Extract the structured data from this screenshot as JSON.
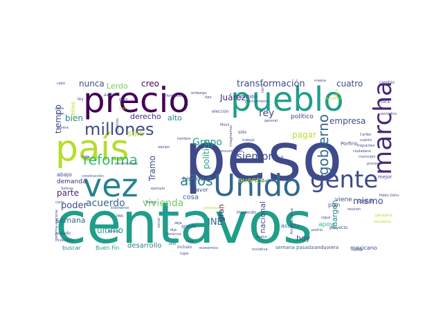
{
  "colors": {
    "background": "#ffffff",
    "palette": [
      "#440154",
      "#482878",
      "#3e4a89",
      "#31688e",
      "#26828e",
      "#1f9e89",
      "#35b779",
      "#6ece58",
      "#b5de2b",
      "#fde725"
    ]
  },
  "words": [
    {
      "text": "peso",
      "size": 96,
      "color": "#3e4a89",
      "vertical": false
    },
    {
      "text": "centavos",
      "size": 82,
      "color": "#1f9e89",
      "vertical": false
    },
    {
      "text": "precio",
      "size": 50,
      "color": "#440154",
      "vertical": false
    },
    {
      "text": "pueblo",
      "size": 48,
      "color": "#1f9e89",
      "vertical": false
    },
    {
      "text": "país",
      "size": 52,
      "color": "#b5de2b",
      "vertical": false
    },
    {
      "text": "vez",
      "size": 46,
      "color": "#26828e",
      "vertical": false
    },
    {
      "text": "Unido",
      "size": 44,
      "color": "#31688e",
      "vertical": false
    },
    {
      "text": "gente",
      "size": 34,
      "color": "#3e4a89",
      "vertical": false
    },
    {
      "text": "marcha",
      "size": 36,
      "color": "#482878",
      "vertical": true
    },
    {
      "text": "millones",
      "size": 24,
      "color": "#3e4a89",
      "vertical": false
    },
    {
      "text": "reforma",
      "size": 20,
      "color": "#35b779",
      "vertical": false
    },
    {
      "text": "gobierno",
      "size": 20,
      "color": "#31688e",
      "vertical": true
    },
    {
      "text": "años",
      "size": 20,
      "color": "#26828e",
      "vertical": false
    },
    {
      "text": "siempre",
      "size": 15,
      "color": "#3e4a89",
      "vertical": false
    },
    {
      "text": "acuerdo",
      "size": 14,
      "color": "#31688e",
      "vertical": false
    },
    {
      "text": "vivienda",
      "size": 14,
      "color": "#6ece58",
      "vertical": false
    },
    {
      "text": "transformación",
      "size": 13,
      "color": "#3e4a89",
      "vertical": false
    },
    {
      "text": "mismo",
      "size": 13,
      "color": "#3e4a89",
      "vertical": false
    },
    {
      "text": "Grupo",
      "size": 14,
      "color": "#1f9e89",
      "vertical": false
    },
    {
      "text": "rey",
      "size": 14,
      "color": "#3e4a89",
      "vertical": false
    },
    {
      "text": "creo",
      "size": 12,
      "color": "#440154",
      "vertical": false
    },
    {
      "text": "nunca",
      "size": 12,
      "color": "#3e4a89",
      "vertical": false
    },
    {
      "text": "Lerdo",
      "size": 11,
      "color": "#6ece58",
      "vertical": false
    },
    {
      "text": "Juárez",
      "size": 12,
      "color": "#482878",
      "vertical": false
    },
    {
      "text": "cuatro",
      "size": 12,
      "color": "#3e4a89",
      "vertical": false
    },
    {
      "text": "derecho",
      "size": 11,
      "color": "#482878",
      "vertical": false
    },
    {
      "text": "alto",
      "size": 11,
      "color": "#26828e",
      "vertical": false
    },
    {
      "text": "bien",
      "size": 12,
      "color": "#26828e",
      "vertical": false
    },
    {
      "text": "sólo",
      "size": 12,
      "color": "#b5de2b",
      "vertical": false
    },
    {
      "text": "empresa",
      "size": 12,
      "color": "#3e4a89",
      "vertical": false
    },
    {
      "text": "pagar",
      "size": 12,
      "color": "#b5de2b",
      "vertical": false
    },
    {
      "text": "tiempo",
      "size": 12,
      "color": "#3e4a89",
      "vertical": true
    },
    {
      "text": "Tramo",
      "size": 12,
      "color": "#3e4a89",
      "vertical": true
    },
    {
      "text": "política",
      "size": 12,
      "color": "#1f9e89",
      "vertical": true
    },
    {
      "text": "parte",
      "size": 12,
      "color": "#482878",
      "vertical": false
    },
    {
      "text": "poder",
      "size": 13,
      "color": "#3e4a89",
      "vertical": false
    },
    {
      "text": "semana",
      "size": 11,
      "color": "#31688e",
      "vertical": false
    },
    {
      "text": "último",
      "size": 12,
      "color": "#1f9e89",
      "vertical": false
    },
    {
      "text": "INE",
      "size": 13,
      "color": "#31688e",
      "vertical": false
    },
    {
      "text": "gran",
      "size": 11,
      "color": "#482878",
      "vertical": true
    },
    {
      "text": "nacional",
      "size": 11,
      "color": "#3e4a89",
      "vertical": true
    },
    {
      "text": "cuenta",
      "size": 11,
      "color": "#b5de2b",
      "vertical": false
    },
    {
      "text": "hoy",
      "size": 11,
      "color": "#3e4a89",
      "vertical": false
    },
    {
      "text": "margen",
      "size": 11,
      "color": "#26828e",
      "vertical": true
    },
    {
      "text": "apoyo",
      "size": 9,
      "color": "#35b779",
      "vertical": false
    },
    {
      "text": "seguir",
      "size": 8,
      "color": "#3e4a89",
      "vertical": false
    },
    {
      "text": "viene",
      "size": 9,
      "color": "#3e4a89",
      "vertical": false
    },
    {
      "text": "plan",
      "size": 8,
      "color": "#3e4a89",
      "vertical": false
    },
    {
      "text": "desarrollo",
      "size": 10,
      "color": "#26828e",
      "vertical": false
    },
    {
      "text": "Buen Fin",
      "size": 8,
      "color": "#1f9e89",
      "vertical": false
    },
    {
      "text": "buscar",
      "size": 8,
      "color": "#26828e",
      "vertical": false
    },
    {
      "text": "demanda",
      "size": 9,
      "color": "#482878",
      "vertical": false
    },
    {
      "text": "abajo",
      "size": 8,
      "color": "#3e4a89",
      "vertical": false
    },
    {
      "text": "cosa",
      "size": 10,
      "color": "#31688e",
      "vertical": false
    },
    {
      "text": "historia",
      "size": 8,
      "color": "#3e4a89",
      "vertical": false
    },
    {
      "text": "político",
      "size": 9,
      "color": "#3e4a89",
      "vertical": false
    },
    {
      "text": "asunto",
      "size": 8,
      "color": "#31688e",
      "vertical": false
    },
    {
      "text": "mexicano",
      "size": 8,
      "color": "#3e4a89",
      "vertical": false
    },
    {
      "text": "semana pasada",
      "size": 7,
      "color": "#31688e",
      "vertical": false
    },
    {
      "text": "anduviera",
      "size": 7,
      "color": "#3e4a89",
      "vertical": false
    },
    {
      "text": "Ciudad",
      "size": 6,
      "color": "#31688e",
      "vertical": false
    },
    {
      "text": "mejor",
      "size": 7,
      "color": "#3e4a89",
      "vertical": false
    },
    {
      "text": "favor",
      "size": 8,
      "color": "#3e4a89",
      "vertical": false
    },
    {
      "text": "partido",
      "size": 7,
      "color": "#3e4a89",
      "vertical": false
    },
    {
      "text": "Porfirio",
      "size": 7,
      "color": "#3e4a89",
      "vertical": false
    },
    {
      "text": "países",
      "size": 8,
      "color": "#b5de2b",
      "vertical": true
    },
    {
      "text": "gas",
      "size": 7,
      "color": "#3e4a89",
      "vertical": false
    },
    {
      "text": "cambio",
      "size": 6,
      "color": "#3e4a89",
      "vertical": false
    },
    {
      "text": "toca",
      "size": 6,
      "color": "#3e4a89",
      "vertical": false
    },
    {
      "text": "periódico",
      "size": 5,
      "color": "#3e4a89",
      "vertical": false
    },
    {
      "text": "Puebla",
      "size": 5,
      "color": "#3e4a89",
      "vertical": false
    },
    {
      "text": "libro",
      "size": 6,
      "color": "#b5de2b",
      "vertical": true
    },
    {
      "text": "tierra",
      "size": 5,
      "color": "#3e4a89",
      "vertical": true
    },
    {
      "text": "información",
      "size": 5,
      "color": "#3e4a89",
      "vertical": false
    },
    {
      "text": "avance",
      "size": 6,
      "color": "#3e4a89",
      "vertical": false
    },
    {
      "text": "zona",
      "size": 5,
      "color": "#b5de2b",
      "vertical": false
    },
    {
      "text": "elección",
      "size": 6,
      "color": "#3e4a89",
      "vertical": false
    },
    {
      "text": "general",
      "size": 5,
      "color": "#3e4a89",
      "vertical": false
    },
    {
      "text": "sido",
      "size": 6,
      "color": "#3e4a89",
      "vertical": false
    },
    {
      "text": "trabajo",
      "size": 5,
      "color": "#3e4a89",
      "vertical": false
    },
    {
      "text": "hombre",
      "size": 5,
      "color": "#3e4a89",
      "vertical": false
    },
    {
      "text": "equipo",
      "size": 5,
      "color": "#3e4a89",
      "vertical": false
    },
    {
      "text": "Caribe",
      "size": 5,
      "color": "#3e4a89",
      "vertical": false
    },
    {
      "text": "cuánto",
      "size": 5,
      "color": "#3e4a89",
      "vertical": false
    },
    {
      "text": "migrantes",
      "size": 5,
      "color": "#3e4a89",
      "vertical": false
    },
    {
      "text": "ciudadano",
      "size": 5,
      "color": "#3e4a89",
      "vertical": false
    },
    {
      "text": "municipio",
      "size": 5,
      "color": "#3e4a89",
      "vertical": false
    },
    {
      "text": "proceso",
      "size": 5,
      "color": "#3e4a89",
      "vertical": false
    },
    {
      "text": "Pablo Gómez",
      "size": 5,
      "color": "#3e4a89",
      "vertical": false
    },
    {
      "text": "reunión",
      "size": 5,
      "color": "#3e4a89",
      "vertical": false
    },
    {
      "text": "persona",
      "size": 6,
      "color": "#b5de2b",
      "vertical": false
    },
    {
      "text": "secretario",
      "size": 5,
      "color": "#b5de2b",
      "vertical": false
    },
    {
      "text": "proyecto",
      "size": 6,
      "color": "#3e4a89",
      "vertical": false
    },
    {
      "text": "sigue",
      "size": 5,
      "color": "#3e4a89",
      "vertical": false
    },
    {
      "text": "podría",
      "size": 5,
      "color": "#3e4a89",
      "vertical": false
    },
    {
      "text": "norte",
      "size": 6,
      "color": "#3e4a89",
      "vertical": false
    },
    {
      "text": "iniciativa",
      "size": 5,
      "color": "#3e4a89",
      "vertical": false
    },
    {
      "text": "dueño",
      "size": 5,
      "color": "#3e4a89",
      "vertical": false
    },
    {
      "text": "casa",
      "size": 5,
      "color": "#3e4a89",
      "vertical": false
    },
    {
      "text": "lugar",
      "size": 5,
      "color": "#3e4a89",
      "vertical": false
    },
    {
      "text": "incluso",
      "size": 6,
      "color": "#3e4a89",
      "vertical": false
    },
    {
      "text": "económico",
      "size": 5,
      "color": "#3e4a89",
      "vertical": false
    },
    {
      "text": "Haciendo",
      "size": 6,
      "color": "#3e4a89",
      "vertical": false
    },
    {
      "text": "grande",
      "size": 6,
      "color": "#3e4a89",
      "vertical": false
    },
    {
      "text": "inversión",
      "size": 6,
      "color": "#3e4a89",
      "vertical": false
    },
    {
      "text": "pasado",
      "size": 6,
      "color": "#3e4a89",
      "vertical": false
    },
    {
      "text": "dinero",
      "size": 5,
      "color": "#3e4a89",
      "vertical": false
    },
    {
      "text": "ejemplo",
      "size": 5,
      "color": "#3e4a89",
      "vertical": false
    },
    {
      "text": "construcción",
      "size": 5,
      "color": "#3e4a89",
      "vertical": false
    },
    {
      "text": "Salinas",
      "size": 5,
      "color": "#3e4a89",
      "vertical": false
    },
    {
      "text": "corte",
      "size": 5,
      "color": "#3e4a89",
      "vertical": false
    },
    {
      "text": "kilómetros",
      "size": 5,
      "color": "#3e4a89",
      "vertical": false
    },
    {
      "text": "Trump",
      "size": 5,
      "color": "#3e4a89",
      "vertical": false
    },
    {
      "text": "PAN",
      "size": 5,
      "color": "#3e4a89",
      "vertical": false
    },
    {
      "text": "Veracruz",
      "size": 5,
      "color": "#3e4a89",
      "vertical": false
    },
    {
      "text": "sino",
      "size": 5,
      "color": "#3e4a89",
      "vertical": false
    },
    {
      "text": "dije",
      "size": 5,
      "color": "#3e4a89",
      "vertical": false
    },
    {
      "text": "deja",
      "size": 5,
      "color": "#3e4a89",
      "vertical": false
    },
    {
      "text": "ley",
      "size": 6,
      "color": "#3e4a89",
      "vertical": false
    },
    {
      "text": "tipo",
      "size": 5,
      "color": "#3e4a89",
      "vertical": false
    },
    {
      "text": "viviera",
      "size": 5,
      "color": "#3e4a89",
      "vertical": false
    },
    {
      "text": "toda",
      "size": 5,
      "color": "#3e4a89",
      "vertical": false
    },
    {
      "text": "cabo",
      "size": 5,
      "color": "#3e4a89",
      "vertical": false
    },
    {
      "text": "pasa",
      "size": 5,
      "color": "#3e4a89",
      "vertical": false
    },
    {
      "text": "Ixan",
      "size": 5,
      "color": "#3e4a89",
      "vertical": false
    },
    {
      "text": "Móvil",
      "size": 5,
      "color": "#3e4a89",
      "vertical": false
    },
    {
      "text": "embargo",
      "size": 5,
      "color": "#3e4a89",
      "vertical": false
    },
    {
      "text": "consumidores",
      "size": 5,
      "color": "#3e4a89",
      "vertical": false
    },
    {
      "text": "presupuesto",
      "size": 5,
      "color": "#b5de2b",
      "vertical": false
    },
    {
      "text": "precisamente",
      "size": 5,
      "color": "#3e4a89",
      "vertical": false
    },
    {
      "text": "revolución",
      "size": 5,
      "color": "#b5de2b",
      "vertical": false
    },
    {
      "text": "encontramos",
      "size": 5,
      "color": "#3e4a89",
      "vertical": false
    },
    {
      "text": "Quiénes",
      "size": 5,
      "color": "#3e4a89",
      "vertical": true
    },
    {
      "text": "social",
      "size": 5,
      "color": "#3e4a89",
      "vertical": true
    },
    {
      "text": "llega",
      "size": 5,
      "color": "#3e4a89",
      "vertical": true
    },
    {
      "text": "saber",
      "size": 5,
      "color": "#3e4a89",
      "vertical": true
    },
    {
      "text": "reforma electoral",
      "size": 5,
      "color": "#3e4a89",
      "vertical": true
    },
    {
      "text": "Imaginamos",
      "size": 5,
      "color": "#3e4a89",
      "vertical": true
    },
    {
      "text": "América Latina",
      "size": 5,
      "color": "#3e4a89",
      "vertical": true
    }
  ]
}
